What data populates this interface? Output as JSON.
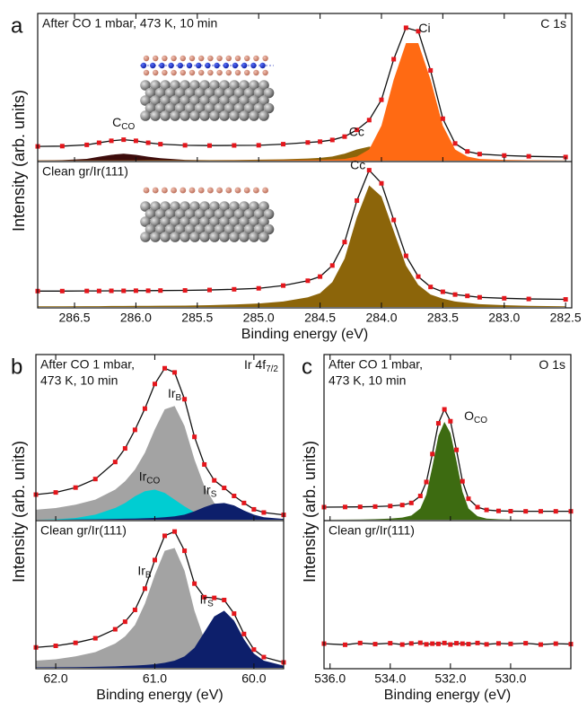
{
  "chart_data": [
    {
      "type": "line",
      "panel_label": "a",
      "ylabel": "Intensity (arb. units)",
      "xlabel": "Binding energy (eV)",
      "xlim": [
        286.8,
        282.45
      ],
      "xticks": [
        286.5,
        {
          "value": 286,
          "label": "286.0"
        },
        285.5,
        {
          "value": 285,
          "label": "285.0"
        },
        284.5,
        {
          "value": 284,
          "label": "284.0"
        },
        283.5,
        {
          "value": 283,
          "label": "283.0"
        },
        282.5
      ],
      "x": [
        286.8,
        286.6,
        286.4,
        286.3,
        286.2,
        286.1,
        286.0,
        285.9,
        285.8,
        285.6,
        285.4,
        285.2,
        285.0,
        284.8,
        284.6,
        284.5,
        284.4,
        284.3,
        284.2,
        284.1,
        284.0,
        283.9,
        283.8,
        283.7,
        283.6,
        283.5,
        283.4,
        283.3,
        283.2,
        283.0,
        282.8,
        282.5
      ],
      "marker_color": "#e4161c",
      "fit_color": "#111111",
      "subplots": [
        {
          "title_lines": [
            "After CO 1 mbar, 473 K, 10 min"
          ],
          "corner_label": {
            "text": "C 1s"
          },
          "ylim": [
            0,
            102
          ],
          "spectrum": [
            10.2,
            10.4,
            11.3,
            12.8,
            14.2,
            15,
            14.2,
            12.8,
            11.8,
            11,
            10.8,
            10.9,
            11,
            11.8,
            13,
            13.6,
            14.8,
            17.2,
            22,
            29,
            43.5,
            72.5,
            95,
            92.5,
            64.5,
            30,
            12.3,
            6.6,
            4.7,
            3.7,
            3.1,
            2.6
          ],
          "components": [
            {
              "name": "C",
              "sub": "CO",
              "color": "#3d0c0c",
              "values": [
                0.2,
                0.4,
                1.3,
                2.8,
                4.2,
                5,
                4.2,
                2.8,
                1.8,
                0.6,
                0.3,
                0.2,
                0.1,
                0,
                0,
                0,
                0,
                0,
                0,
                0,
                0,
                0,
                0,
                0,
                0,
                0,
                0,
                0,
                0,
                0,
                0,
                0
              ]
            },
            {
              "name": "Cc",
              "color": "#8c650a",
              "values": [
                0.2,
                0.2,
                0.2,
                0.2,
                0.2,
                0.2,
                0.2,
                0.3,
                0.3,
                0.3,
                0.4,
                0.5,
                0.7,
                1,
                1.5,
                2,
                3,
                5,
                8,
                10,
                8,
                5,
                3,
                2,
                1.5,
                1,
                0.8,
                0.6,
                0.5,
                0.3,
                0.2,
                0.1
              ]
            },
            {
              "name": "Ci",
              "color": "#ff6a13",
              "values": [
                0.1,
                0.1,
                0.1,
                0.1,
                0.1,
                0.1,
                0.1,
                0.1,
                0.1,
                0.1,
                0.1,
                0.2,
                0.2,
                0.3,
                0.5,
                0.6,
                0.8,
                1.2,
                3,
                8,
                25,
                58,
                84,
                84,
                58,
                25,
                8,
                3,
                1.2,
                0.6,
                0.3,
                0.1
              ]
            }
          ]
        },
        {
          "title_lines": [
            "Clean gr/Ir(111)"
          ],
          "ylim": [
            0,
            102
          ],
          "spectrum": [
            11.5,
            11.5,
            11.6,
            11.6,
            11.7,
            11.7,
            11.8,
            11.8,
            11.9,
            12,
            12.3,
            12.8,
            13.5,
            15.5,
            19,
            22,
            30,
            47,
            77,
            99,
            89.5,
            63,
            37,
            22,
            14.5,
            11,
            9,
            8,
            7,
            6.3,
            5.8,
            5.5
          ],
          "components": [
            {
              "name": "Cc",
              "color": "#8c650a",
              "values": [
                0.5,
                0.5,
                0.6,
                0.6,
                0.7,
                0.7,
                0.8,
                0.8,
                0.9,
                1,
                1.3,
                1.8,
                2.5,
                4,
                7,
                10,
                18,
                35,
                65,
                88,
                80,
                55,
                30,
                16,
                9,
                6,
                4,
                3,
                2,
                1.3,
                0.8,
                0.5
              ]
            }
          ]
        }
      ]
    },
    {
      "type": "line",
      "panel_label": "b",
      "ylabel": "Intensity (arb. units)",
      "xlabel": "Binding energy (eV)",
      "xlim": [
        62.2,
        59.7
      ],
      "xticks": [
        {
          "value": 62,
          "label": "62.0"
        },
        {
          "value": 61,
          "label": "61.0"
        },
        {
          "value": 60,
          "label": "60.0"
        }
      ],
      "x": [
        62.2,
        62.0,
        61.8,
        61.6,
        61.4,
        61.3,
        61.2,
        61.1,
        61.0,
        60.9,
        60.8,
        60.7,
        60.6,
        60.5,
        60.4,
        60.3,
        60.2,
        60.1,
        60.0,
        59.9,
        59.7
      ],
      "marker_color": "#e4161c",
      "fit_color": "#111111",
      "subplots": [
        {
          "title_lines": [
            "After CO  1 mbar,",
            "473 K, 10 min"
          ],
          "corner_label": {
            "text": "Ir 4f",
            "sub": "7/2"
          },
          "ylim": [
            0,
            96
          ],
          "spectrum": [
            15,
            16.3,
            19.2,
            24.3,
            34.5,
            42.6,
            53.7,
            66.4,
            81.1,
            90.5,
            88,
            72,
            49.5,
            33,
            23.5,
            19,
            14.2,
            10,
            6.2,
            4.3,
            2.9
          ],
          "components": [
            {
              "name": "Ir",
              "sub": "B",
              "color": "#a3a3a3",
              "values": [
                6,
                7,
                9,
                12,
                18,
                23,
                30,
                40,
                54,
                66,
                68,
                56,
                36,
                20,
                10,
                5.5,
                3,
                2,
                1.2,
                0.8,
                0.4
              ]
            },
            {
              "name": "Ir",
              "sub": "CO",
              "color": "#00cdd2",
              "values": [
                0,
                0.3,
                1,
                3,
                7,
                10,
                14,
                17,
                18,
                16,
                12,
                8,
                4.5,
                2,
                1,
                0.5,
                0.2,
                0,
                0,
                0,
                0
              ]
            },
            {
              "name": "Ir",
              "sub": "S",
              "color": "#0d1f6b",
              "values": [
                0,
                0,
                0.2,
                0.3,
                0.5,
                0.6,
                0.7,
                0.9,
                1.1,
                1.5,
                2,
                3,
                5,
                7.5,
                9.5,
                10,
                8.5,
                5.5,
                3,
                1.5,
                0.5
              ]
            }
          ]
        },
        {
          "title_lines": [
            "Clean gr/Ir(111)"
          ],
          "ylim": [
            0,
            100
          ],
          "spectrum": [
            14.3,
            15.4,
            17.5,
            20.7,
            27,
            32.3,
            40.6,
            55.5,
            75.5,
            92.5,
            95.5,
            82,
            59,
            49.5,
            49,
            47.5,
            38,
            23.7,
            12.8,
            7.5,
            3.8
          ],
          "components": [
            {
              "name": "Ir",
              "sub": "B",
              "color": "#a3a3a3",
              "values": [
                5,
                6,
                8,
                11,
                17,
                22,
                30,
                45,
                65,
                82,
                84,
                68,
                40,
                20,
                9,
                4,
                2,
                1.2,
                0.8,
                0.5,
                0.3
              ]
            },
            {
              "name": "Ir",
              "sub": "S",
              "color": "#0d1f6b",
              "values": [
                0.3,
                0.4,
                0.5,
                0.7,
                1,
                1.3,
                1.6,
                2,
                2.5,
                3.5,
                5,
                8,
                14,
                25,
                36,
                40,
                33,
                20,
                10,
                5,
                1.5
              ]
            }
          ]
        }
      ]
    },
    {
      "type": "line",
      "panel_label": "c",
      "ylabel": "Intensity (arb. units)",
      "xlabel": "Binding energy (eV)",
      "xlim": [
        536.2,
        528
      ],
      "xticks": [
        {
          "value": 536,
          "label": "536.0"
        },
        {
          "value": 534,
          "label": "534.0"
        },
        {
          "value": 532,
          "label": "532.0"
        },
        {
          "value": 530,
          "label": "530.0"
        }
      ],
      "x": [
        536.2,
        535.5,
        535,
        534.5,
        534,
        533.6,
        533.3,
        533.0,
        532.8,
        532.6,
        532.4,
        532.2,
        532.0,
        531.8,
        531.6,
        531.4,
        531.1,
        530.8,
        530.4,
        530.0,
        529.5,
        529.0,
        528.5,
        528.0
      ],
      "marker_color": "#e4161c",
      "fit_color": "#111111",
      "subplots": [
        {
          "title_lines": [
            "After CO 1 mbar,",
            "473 K, 10 min"
          ],
          "corner_label": {
            "text": "O 1s"
          },
          "ylim": [
            0,
            115
          ],
          "spectrum": [
            9,
            9.1,
            9.2,
            9.4,
            9.8,
            10.5,
            12,
            17,
            27,
            47,
            69,
            79,
            70.5,
            50,
            27.5,
            15,
            9,
            7,
            6.3,
            6.1,
            6,
            6,
            6,
            6
          ],
          "components": [
            {
              "name": "O",
              "sub": "CO",
              "color": "#3d6b11",
              "values": [
                0,
                0.1,
                0.2,
                0.4,
                0.8,
                1.5,
                3,
                8,
                18,
                38,
                60,
                70,
                62,
                42,
                20,
                8,
                2.5,
                0.8,
                0.3,
                0.1,
                0,
                0,
                0,
                0
              ]
            }
          ]
        },
        {
          "title_lines": [
            "Clean gr/Ir(111)"
          ],
          "ylim": [
            0,
            65
          ],
          "spectrum": [
            11,
            10.5,
            11.3,
            10.8,
            11.2,
            10.6,
            11.1,
            11.4,
            10.7,
            11,
            10.9,
            11.3,
            10.6,
            11.2,
            11,
            10.8,
            11.3,
            10.7,
            11.1,
            10.9,
            11.2,
            10.6,
            11,
            10.8
          ],
          "components": []
        }
      ]
    }
  ]
}
